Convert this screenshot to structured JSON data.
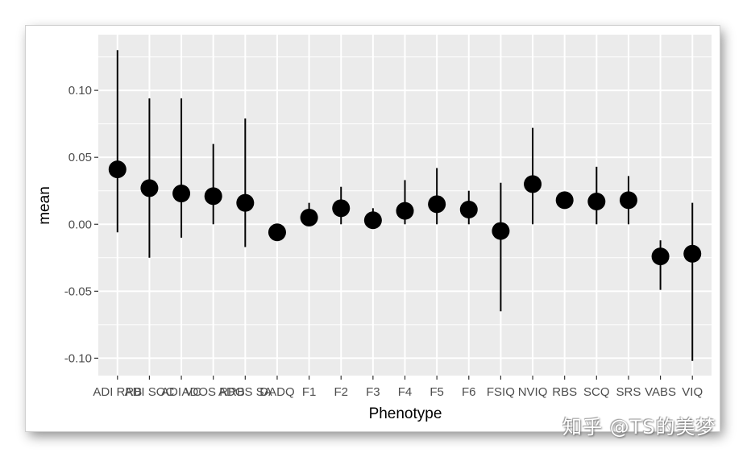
{
  "chart_data": {
    "type": "scatter",
    "subtype": "pointrange",
    "title": "",
    "xlabel": "Phenotype",
    "ylabel": "mean",
    "ylim": [
      -0.113,
      0.1416
    ],
    "yticks": [
      0.1,
      0.05,
      0.0,
      -0.05,
      -0.1
    ],
    "ytick_labels": [
      "0.10",
      "0.05",
      "0.00",
      "-0.05",
      "-0.10"
    ],
    "grid": true,
    "legend": null,
    "categories": [
      "ADI RRB",
      "ADI SOC",
      "ADI VC",
      "ADOS RRB",
      "ADOS SA",
      "DADQ",
      "F1",
      "F2",
      "F3",
      "F4",
      "F5",
      "F6",
      "FSIQ",
      "NVIQ",
      "RBS",
      "SCQ",
      "SRS",
      "VABS",
      "VIQ"
    ],
    "series": [
      {
        "name": "mean",
        "values": [
          0.041,
          0.027,
          0.023,
          0.021,
          0.016,
          -0.006,
          0.005,
          0.012,
          0.003,
          0.01,
          0.015,
          0.011,
          -0.005,
          0.03,
          0.018,
          0.017,
          0.018,
          -0.024,
          -0.022
        ],
        "lower": [
          -0.006,
          -0.025,
          -0.01,
          0.0,
          -0.017,
          -0.006,
          0.0,
          0.0,
          0.0,
          0.0,
          0.0,
          0.0,
          -0.065,
          0.0,
          0.018,
          0.0,
          0.0,
          -0.049,
          -0.102
        ],
        "upper": [
          0.13,
          0.094,
          0.094,
          0.06,
          0.079,
          -0.006,
          0.016,
          0.028,
          0.012,
          0.033,
          0.042,
          0.025,
          0.031,
          0.072,
          0.018,
          0.043,
          0.036,
          -0.012,
          0.016
        ]
      }
    ]
  },
  "colors": {
    "panel_bg": "#ebebeb",
    "grid": "#ffffff",
    "point": "#000000",
    "tick_text": "#4d4d4d"
  },
  "watermark": "知乎 @TS的美梦"
}
